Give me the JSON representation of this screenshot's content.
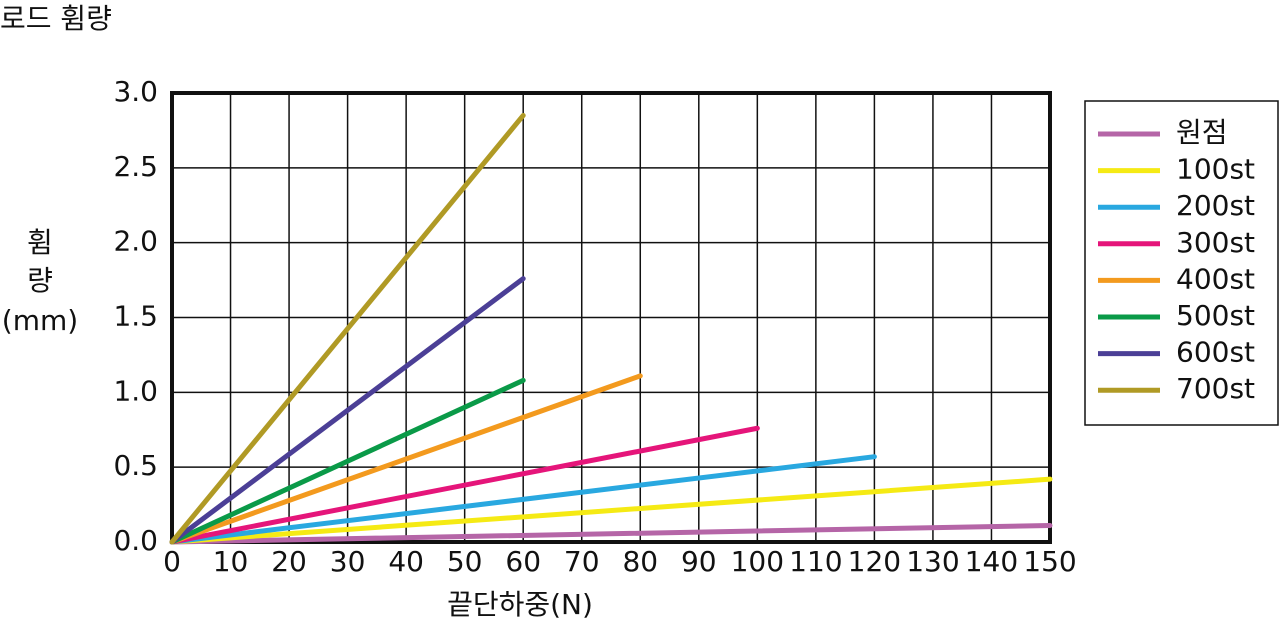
{
  "chart_data": {
    "type": "line",
    "title": "로드 휨량",
    "x_label": "끝단하중(N)",
    "y_label": [
      "휨",
      "량",
      "(mm)"
    ],
    "xlim": [
      0,
      150
    ],
    "xticks": [
      0,
      10,
      20,
      30,
      40,
      50,
      60,
      70,
      80,
      90,
      100,
      110,
      120,
      130,
      140,
      150
    ],
    "ylim": [
      0,
      3.0
    ],
    "yticks": [
      {
        "value": 0,
        "label": "0.0"
      },
      0.5,
      {
        "value": 1,
        "label": "1.0"
      },
      1.5,
      {
        "value": 2,
        "label": "2.0"
      },
      2.5,
      {
        "value": 3,
        "label": "3.0"
      }
    ],
    "grid": true,
    "legend": "right",
    "series": [
      {
        "name": "원점",
        "color": "#b565a7",
        "x": [
          0,
          150
        ],
        "values": [
          0,
          0.11
        ]
      },
      {
        "name": "100st",
        "color": "#f5ea14",
        "x": [
          0,
          150
        ],
        "values": [
          0,
          0.42
        ]
      },
      {
        "name": "200st",
        "color": "#29a8e0",
        "x": [
          0,
          120
        ],
        "values": [
          0,
          0.57
        ]
      },
      {
        "name": "300st",
        "color": "#e5157a",
        "x": [
          0,
          100
        ],
        "values": [
          0,
          0.76
        ]
      },
      {
        "name": "400st",
        "color": "#f39a1e",
        "x": [
          0,
          80
        ],
        "values": [
          0,
          1.11
        ]
      },
      {
        "name": "500st",
        "color": "#0a9a48",
        "x": [
          0,
          60
        ],
        "values": [
          0,
          1.08
        ]
      },
      {
        "name": "600st",
        "color": "#4b3f96",
        "x": [
          0,
          60
        ],
        "values": [
          0,
          1.76
        ]
      },
      {
        "name": "700st",
        "color": "#b09a25",
        "x": [
          0,
          60
        ],
        "values": [
          0,
          2.85
        ]
      }
    ]
  }
}
